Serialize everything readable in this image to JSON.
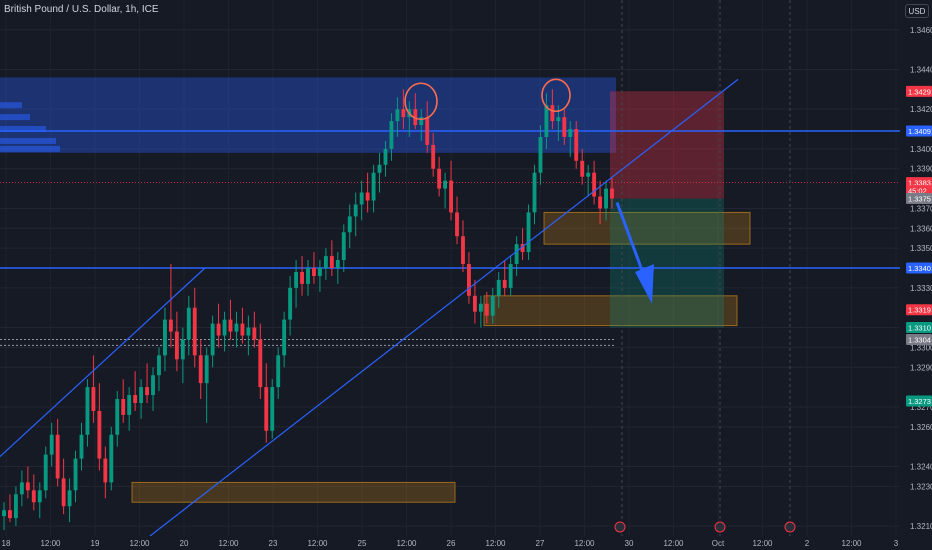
{
  "chart_data": {
    "type": "candlestick",
    "title": "British Pound / U.S. Dollar, 1h, ICE",
    "currency_button": "USD",
    "ylim": [
      1.3205,
      1.3475
    ],
    "y_ticks": [
      "1.3460",
      "1.3440",
      "1.3420",
      "1.3400",
      "1.3390",
      "1.3370",
      "1.3360",
      "1.3350",
      "1.3330",
      "1.3310",
      "1.3300",
      "1.3290",
      "1.3270",
      "1.3260",
      "1.3240",
      "1.3230",
      "1.3210"
    ],
    "x_ticks": [
      "18",
      "12:00",
      "19",
      "12:00",
      "20",
      "12:00",
      "23",
      "12:00",
      "25",
      "12:00",
      "26",
      "12:00",
      "27",
      "12:00",
      "30",
      "12:00",
      "Oct",
      "12:00",
      "2",
      "12:00",
      "3"
    ],
    "price_labels": [
      {
        "text": "1.3429",
        "color": "#f23645"
      },
      {
        "text": "1.3409",
        "color": "#2962ff"
      },
      {
        "text": "1.3383",
        "color": "#f23645"
      },
      {
        "text": "45:02",
        "color": "#f23645"
      },
      {
        "text": "1.3375",
        "color": "#787b86"
      },
      {
        "text": "1.3340",
        "color": "#2962ff"
      },
      {
        "text": "1.3319",
        "color": "#f23645"
      },
      {
        "text": "1.3310",
        "color": "#089981"
      },
      {
        "text": "1.3304",
        "color": "#787b86"
      },
      {
        "text": "1.3273",
        "color": "#089981"
      }
    ],
    "horizontal_levels": [
      1.3409,
      1.334
    ],
    "dotted_levels": [
      1.3304,
      1.3301
    ],
    "supply_zone": {
      "y_low": 1.3398,
      "y_high": 1.3436
    },
    "demand_zones": [
      {
        "y_low": 1.3352,
        "y_high": 1.3368
      },
      {
        "y_low": 1.3311,
        "y_high": 1.3326
      },
      {
        "y_low": 1.3222,
        "y_high": 1.3232
      }
    ],
    "short_position": {
      "entry": 1.3375,
      "stop": 1.3429,
      "target": 1.331
    },
    "colors": {
      "up": "#089981",
      "down": "#f23645",
      "line": "#2962ff",
      "zone": "#c8861a"
    },
    "candles": [
      {
        "o": 1.3215,
        "h": 1.3222,
        "l": 1.3208,
        "c": 1.3218
      },
      {
        "o": 1.3218,
        "h": 1.3226,
        "l": 1.3212,
        "c": 1.3214
      },
      {
        "o": 1.3214,
        "h": 1.323,
        "l": 1.321,
        "c": 1.3226
      },
      {
        "o": 1.3226,
        "h": 1.3238,
        "l": 1.322,
        "c": 1.3232
      },
      {
        "o": 1.3232,
        "h": 1.324,
        "l": 1.3224,
        "c": 1.3228
      },
      {
        "o": 1.3228,
        "h": 1.3236,
        "l": 1.3218,
        "c": 1.3222
      },
      {
        "o": 1.3222,
        "h": 1.3232,
        "l": 1.3214,
        "c": 1.3228
      },
      {
        "o": 1.3228,
        "h": 1.325,
        "l": 1.3224,
        "c": 1.3246
      },
      {
        "o": 1.3246,
        "h": 1.3262,
        "l": 1.324,
        "c": 1.3256
      },
      {
        "o": 1.3256,
        "h": 1.3264,
        "l": 1.323,
        "c": 1.3234
      },
      {
        "o": 1.3234,
        "h": 1.3244,
        "l": 1.3216,
        "c": 1.322
      },
      {
        "o": 1.322,
        "h": 1.3234,
        "l": 1.3212,
        "c": 1.3228
      },
      {
        "o": 1.3228,
        "h": 1.3248,
        "l": 1.3222,
        "c": 1.3244
      },
      {
        "o": 1.3244,
        "h": 1.3262,
        "l": 1.3238,
        "c": 1.3256
      },
      {
        "o": 1.3256,
        "h": 1.3284,
        "l": 1.325,
        "c": 1.328
      },
      {
        "o": 1.328,
        "h": 1.3296,
        "l": 1.3262,
        "c": 1.3268
      },
      {
        "o": 1.3268,
        "h": 1.3282,
        "l": 1.3238,
        "c": 1.3244
      },
      {
        "o": 1.3244,
        "h": 1.325,
        "l": 1.3224,
        "c": 1.3232
      },
      {
        "o": 1.3232,
        "h": 1.326,
        "l": 1.3228,
        "c": 1.3256
      },
      {
        "o": 1.3256,
        "h": 1.3278,
        "l": 1.325,
        "c": 1.3274
      },
      {
        "o": 1.3274,
        "h": 1.3284,
        "l": 1.3262,
        "c": 1.3266
      },
      {
        "o": 1.3266,
        "h": 1.328,
        "l": 1.3258,
        "c": 1.3276
      },
      {
        "o": 1.3276,
        "h": 1.3288,
        "l": 1.3268,
        "c": 1.3272
      },
      {
        "o": 1.3272,
        "h": 1.3284,
        "l": 1.3264,
        "c": 1.328
      },
      {
        "o": 1.328,
        "h": 1.3292,
        "l": 1.3272,
        "c": 1.3276
      },
      {
        "o": 1.3276,
        "h": 1.329,
        "l": 1.3268,
        "c": 1.3286
      },
      {
        "o": 1.3286,
        "h": 1.33,
        "l": 1.3278,
        "c": 1.3296
      },
      {
        "o": 1.3296,
        "h": 1.332,
        "l": 1.3288,
        "c": 1.3314
      },
      {
        "o": 1.3314,
        "h": 1.3342,
        "l": 1.33,
        "c": 1.3308
      },
      {
        "o": 1.3308,
        "h": 1.3318,
        "l": 1.3288,
        "c": 1.3294
      },
      {
        "o": 1.3294,
        "h": 1.331,
        "l": 1.3282,
        "c": 1.3304
      },
      {
        "o": 1.3304,
        "h": 1.3326,
        "l": 1.3296,
        "c": 1.332
      },
      {
        "o": 1.332,
        "h": 1.333,
        "l": 1.329,
        "c": 1.3296
      },
      {
        "o": 1.3296,
        "h": 1.3304,
        "l": 1.3274,
        "c": 1.3282
      },
      {
        "o": 1.3282,
        "h": 1.33,
        "l": 1.3262,
        "c": 1.3296
      },
      {
        "o": 1.3296,
        "h": 1.3316,
        "l": 1.329,
        "c": 1.3312
      },
      {
        "o": 1.3312,
        "h": 1.3322,
        "l": 1.33,
        "c": 1.3306
      },
      {
        "o": 1.3306,
        "h": 1.3318,
        "l": 1.3298,
        "c": 1.3314
      },
      {
        "o": 1.3314,
        "h": 1.3324,
        "l": 1.3304,
        "c": 1.3308
      },
      {
        "o": 1.3308,
        "h": 1.3318,
        "l": 1.33,
        "c": 1.3312
      },
      {
        "o": 1.3312,
        "h": 1.332,
        "l": 1.3302,
        "c": 1.3306
      },
      {
        "o": 1.3306,
        "h": 1.3316,
        "l": 1.3296,
        "c": 1.331
      },
      {
        "o": 1.331,
        "h": 1.3318,
        "l": 1.33,
        "c": 1.3304
      },
      {
        "o": 1.3304,
        "h": 1.3312,
        "l": 1.3274,
        "c": 1.328
      },
      {
        "o": 1.328,
        "h": 1.3292,
        "l": 1.3252,
        "c": 1.3258
      },
      {
        "o": 1.3258,
        "h": 1.3284,
        "l": 1.3254,
        "c": 1.328
      },
      {
        "o": 1.328,
        "h": 1.33,
        "l": 1.3274,
        "c": 1.3296
      },
      {
        "o": 1.3296,
        "h": 1.3318,
        "l": 1.329,
        "c": 1.3314
      },
      {
        "o": 1.3314,
        "h": 1.3336,
        "l": 1.3306,
        "c": 1.333
      },
      {
        "o": 1.333,
        "h": 1.3344,
        "l": 1.332,
        "c": 1.3338
      },
      {
        "o": 1.3338,
        "h": 1.3346,
        "l": 1.3326,
        "c": 1.3332
      },
      {
        "o": 1.3332,
        "h": 1.3344,
        "l": 1.3326,
        "c": 1.334
      },
      {
        "o": 1.334,
        "h": 1.3348,
        "l": 1.3332,
        "c": 1.3336
      },
      {
        "o": 1.3336,
        "h": 1.3344,
        "l": 1.3328,
        "c": 1.334
      },
      {
        "o": 1.334,
        "h": 1.335,
        "l": 1.3334,
        "c": 1.3346
      },
      {
        "o": 1.3346,
        "h": 1.3354,
        "l": 1.3336,
        "c": 1.334
      },
      {
        "o": 1.334,
        "h": 1.3348,
        "l": 1.3332,
        "c": 1.3344
      },
      {
        "o": 1.3344,
        "h": 1.3362,
        "l": 1.3338,
        "c": 1.3358
      },
      {
        "o": 1.3358,
        "h": 1.3372,
        "l": 1.335,
        "c": 1.3366
      },
      {
        "o": 1.3366,
        "h": 1.3378,
        "l": 1.3356,
        "c": 1.3372
      },
      {
        "o": 1.3372,
        "h": 1.3384,
        "l": 1.3364,
        "c": 1.3378
      },
      {
        "o": 1.3378,
        "h": 1.3388,
        "l": 1.3368,
        "c": 1.3374
      },
      {
        "o": 1.3374,
        "h": 1.3392,
        "l": 1.3368,
        "c": 1.3388
      },
      {
        "o": 1.3388,
        "h": 1.3398,
        "l": 1.3378,
        "c": 1.3392
      },
      {
        "o": 1.3392,
        "h": 1.3404,
        "l": 1.3386,
        "c": 1.34
      },
      {
        "o": 1.34,
        "h": 1.3418,
        "l": 1.3394,
        "c": 1.3414
      },
      {
        "o": 1.3414,
        "h": 1.3426,
        "l": 1.3406,
        "c": 1.342
      },
      {
        "o": 1.342,
        "h": 1.343,
        "l": 1.341,
        "c": 1.3416
      },
      {
        "o": 1.3416,
        "h": 1.3424,
        "l": 1.3406,
        "c": 1.342
      },
      {
        "o": 1.342,
        "h": 1.3428,
        "l": 1.341,
        "c": 1.3412
      },
      {
        "o": 1.3412,
        "h": 1.342,
        "l": 1.3404,
        "c": 1.3416
      },
      {
        "o": 1.3416,
        "h": 1.3424,
        "l": 1.3398,
        "c": 1.3402
      },
      {
        "o": 1.3402,
        "h": 1.3408,
        "l": 1.3386,
        "c": 1.339
      },
      {
        "o": 1.339,
        "h": 1.3396,
        "l": 1.3376,
        "c": 1.338
      },
      {
        "o": 1.338,
        "h": 1.3388,
        "l": 1.337,
        "c": 1.3384
      },
      {
        "o": 1.3384,
        "h": 1.3394,
        "l": 1.3364,
        "c": 1.3368
      },
      {
        "o": 1.3368,
        "h": 1.3376,
        "l": 1.3352,
        "c": 1.3356
      },
      {
        "o": 1.3356,
        "h": 1.3364,
        "l": 1.3338,
        "c": 1.3342
      },
      {
        "o": 1.3342,
        "h": 1.3348,
        "l": 1.3322,
        "c": 1.3326
      },
      {
        "o": 1.3326,
        "h": 1.3334,
        "l": 1.3312,
        "c": 1.3318
      },
      {
        "o": 1.3318,
        "h": 1.3326,
        "l": 1.331,
        "c": 1.3322
      },
      {
        "o": 1.3322,
        "h": 1.3328,
        "l": 1.3312,
        "c": 1.3316
      },
      {
        "o": 1.3316,
        "h": 1.333,
        "l": 1.3312,
        "c": 1.3326
      },
      {
        "o": 1.3326,
        "h": 1.3338,
        "l": 1.332,
        "c": 1.3334
      },
      {
        "o": 1.3334,
        "h": 1.3344,
        "l": 1.3326,
        "c": 1.333
      },
      {
        "o": 1.333,
        "h": 1.3346,
        "l": 1.3326,
        "c": 1.3342
      },
      {
        "o": 1.3342,
        "h": 1.3356,
        "l": 1.3336,
        "c": 1.3352
      },
      {
        "o": 1.3352,
        "h": 1.336,
        "l": 1.3344,
        "c": 1.3348
      },
      {
        "o": 1.3348,
        "h": 1.3372,
        "l": 1.3344,
        "c": 1.3368
      },
      {
        "o": 1.3368,
        "h": 1.3392,
        "l": 1.3362,
        "c": 1.3388
      },
      {
        "o": 1.3388,
        "h": 1.3412,
        "l": 1.3382,
        "c": 1.3406
      },
      {
        "o": 1.3406,
        "h": 1.3428,
        "l": 1.34,
        "c": 1.3422
      },
      {
        "o": 1.3422,
        "h": 1.343,
        "l": 1.341,
        "c": 1.3414
      },
      {
        "o": 1.3414,
        "h": 1.3422,
        "l": 1.3404,
        "c": 1.3416
      },
      {
        "o": 1.3416,
        "h": 1.342,
        "l": 1.3402,
        "c": 1.3406
      },
      {
        "o": 1.3406,
        "h": 1.3414,
        "l": 1.3396,
        "c": 1.341
      },
      {
        "o": 1.341,
        "h": 1.3414,
        "l": 1.339,
        "c": 1.3394
      },
      {
        "o": 1.3394,
        "h": 1.34,
        "l": 1.3382,
        "c": 1.3386
      },
      {
        "o": 1.3386,
        "h": 1.3392,
        "l": 1.3376,
        "c": 1.3388
      },
      {
        "o": 1.3388,
        "h": 1.3394,
        "l": 1.3372,
        "c": 1.3376
      },
      {
        "o": 1.3376,
        "h": 1.3384,
        "l": 1.3362,
        "c": 1.337
      },
      {
        "o": 1.337,
        "h": 1.3384,
        "l": 1.3364,
        "c": 1.338
      },
      {
        "o": 1.338,
        "h": 1.3386,
        "l": 1.337,
        "c": 1.3375
      }
    ]
  }
}
